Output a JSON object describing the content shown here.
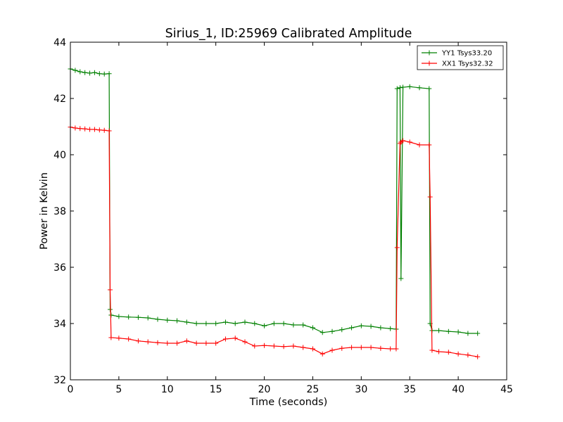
{
  "chart_data": {
    "type": "line",
    "title": "Sirius_1, ID:25969 Calibrated Amplitude",
    "xlabel": "Time (seconds)",
    "ylabel": "Power in Kelvin",
    "xlim": [
      0,
      45
    ],
    "ylim": [
      32,
      44
    ],
    "xticks": [
      0,
      5,
      10,
      15,
      20,
      25,
      30,
      35,
      40,
      45
    ],
    "yticks": [
      32,
      34,
      36,
      38,
      40,
      42,
      44
    ],
    "grid": false,
    "legend_position": "top-right",
    "marker": "plus",
    "series": [
      {
        "name": "YY1 Tsys33.20",
        "color": "#008000",
        "x": [
          0,
          0.5,
          1,
          1.5,
          2,
          2.5,
          3,
          3.5,
          4,
          4.1,
          4.2,
          5,
          6,
          7,
          8,
          9,
          10,
          11,
          12,
          13,
          14,
          15,
          16,
          17,
          18,
          19,
          20,
          21,
          22,
          23,
          24,
          25,
          26,
          27,
          28,
          29,
          30,
          31,
          32,
          33,
          33.6,
          33.7,
          34,
          34.1,
          34.3,
          35,
          36,
          37,
          37.1,
          37.3,
          38,
          39,
          40,
          41,
          42
        ],
        "y": [
          43.05,
          43.0,
          42.95,
          42.92,
          42.9,
          42.92,
          42.88,
          42.87,
          42.88,
          34.5,
          34.3,
          34.25,
          34.23,
          34.22,
          34.2,
          34.15,
          34.12,
          34.1,
          34.05,
          34.0,
          34.0,
          34.0,
          34.05,
          34.0,
          34.05,
          34.0,
          33.92,
          34.0,
          34.0,
          33.95,
          33.95,
          33.85,
          33.68,
          33.72,
          33.78,
          33.85,
          33.92,
          33.9,
          33.85,
          33.82,
          33.8,
          42.35,
          42.38,
          35.6,
          42.4,
          42.42,
          42.38,
          42.35,
          34.0,
          33.75,
          33.75,
          33.72,
          33.7,
          33.65,
          33.65
        ]
      },
      {
        "name": "XX1 Tsys32.32",
        "color": "#ff0000",
        "x": [
          0,
          0.5,
          1,
          1.5,
          2,
          2.5,
          3,
          3.5,
          4,
          4.1,
          4.2,
          5,
          6,
          7,
          8,
          9,
          10,
          11,
          12,
          13,
          14,
          15,
          16,
          17,
          18,
          19,
          20,
          21,
          22,
          23,
          24,
          25,
          26,
          27,
          28,
          29,
          30,
          31,
          32,
          33,
          33.6,
          33.7,
          34,
          34.1,
          34.3,
          35,
          36,
          37,
          37.1,
          37.3,
          38,
          39,
          40,
          41,
          42
        ],
        "y": [
          40.98,
          40.95,
          40.93,
          40.92,
          40.9,
          40.9,
          40.88,
          40.87,
          40.85,
          35.2,
          33.5,
          33.48,
          33.45,
          33.38,
          33.35,
          33.32,
          33.3,
          33.3,
          33.38,
          33.3,
          33.3,
          33.3,
          33.45,
          33.48,
          33.35,
          33.2,
          33.22,
          33.2,
          33.18,
          33.2,
          33.15,
          33.1,
          32.92,
          33.05,
          33.12,
          33.15,
          33.15,
          33.15,
          33.12,
          33.1,
          33.1,
          36.7,
          40.4,
          40.45,
          40.5,
          40.45,
          40.35,
          40.35,
          38.5,
          33.05,
          33.0,
          32.98,
          32.92,
          32.88,
          32.82
        ]
      }
    ]
  }
}
